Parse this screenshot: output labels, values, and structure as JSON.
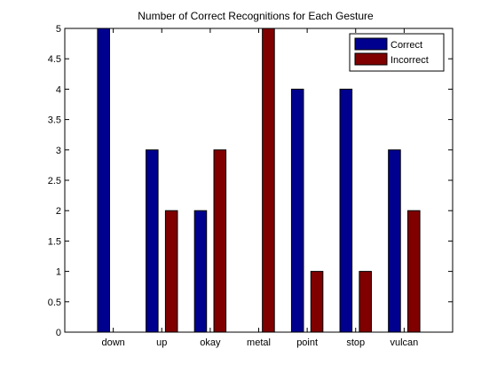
{
  "chart_data": {
    "type": "bar",
    "title": "Number of Correct Recognitions for Each Gesture",
    "xlabel": "",
    "ylabel": "",
    "categories": [
      "down",
      "up",
      "okay",
      "metal",
      "point",
      "stop",
      "vulcan"
    ],
    "series": [
      {
        "name": "Correct",
        "color": "#00008f",
        "values": [
          5,
          3,
          2,
          0,
          4,
          4,
          3
        ]
      },
      {
        "name": "Incorrect",
        "color": "#800000",
        "values": [
          0,
          2,
          3,
          5,
          1,
          1,
          2
        ]
      }
    ],
    "xlim": [
      0,
      8
    ],
    "ylim": [
      0,
      5
    ],
    "yticks": [
      0,
      0.5,
      1,
      1.5,
      2,
      2.5,
      3,
      3.5,
      4,
      4.5,
      5
    ],
    "ytick_labels": [
      "0",
      "0.5",
      "1",
      "1.5",
      "2",
      "2.5",
      "3",
      "3.5",
      "4",
      "4.5",
      "5"
    ],
    "grid": false,
    "legend_position": "top-right"
  }
}
